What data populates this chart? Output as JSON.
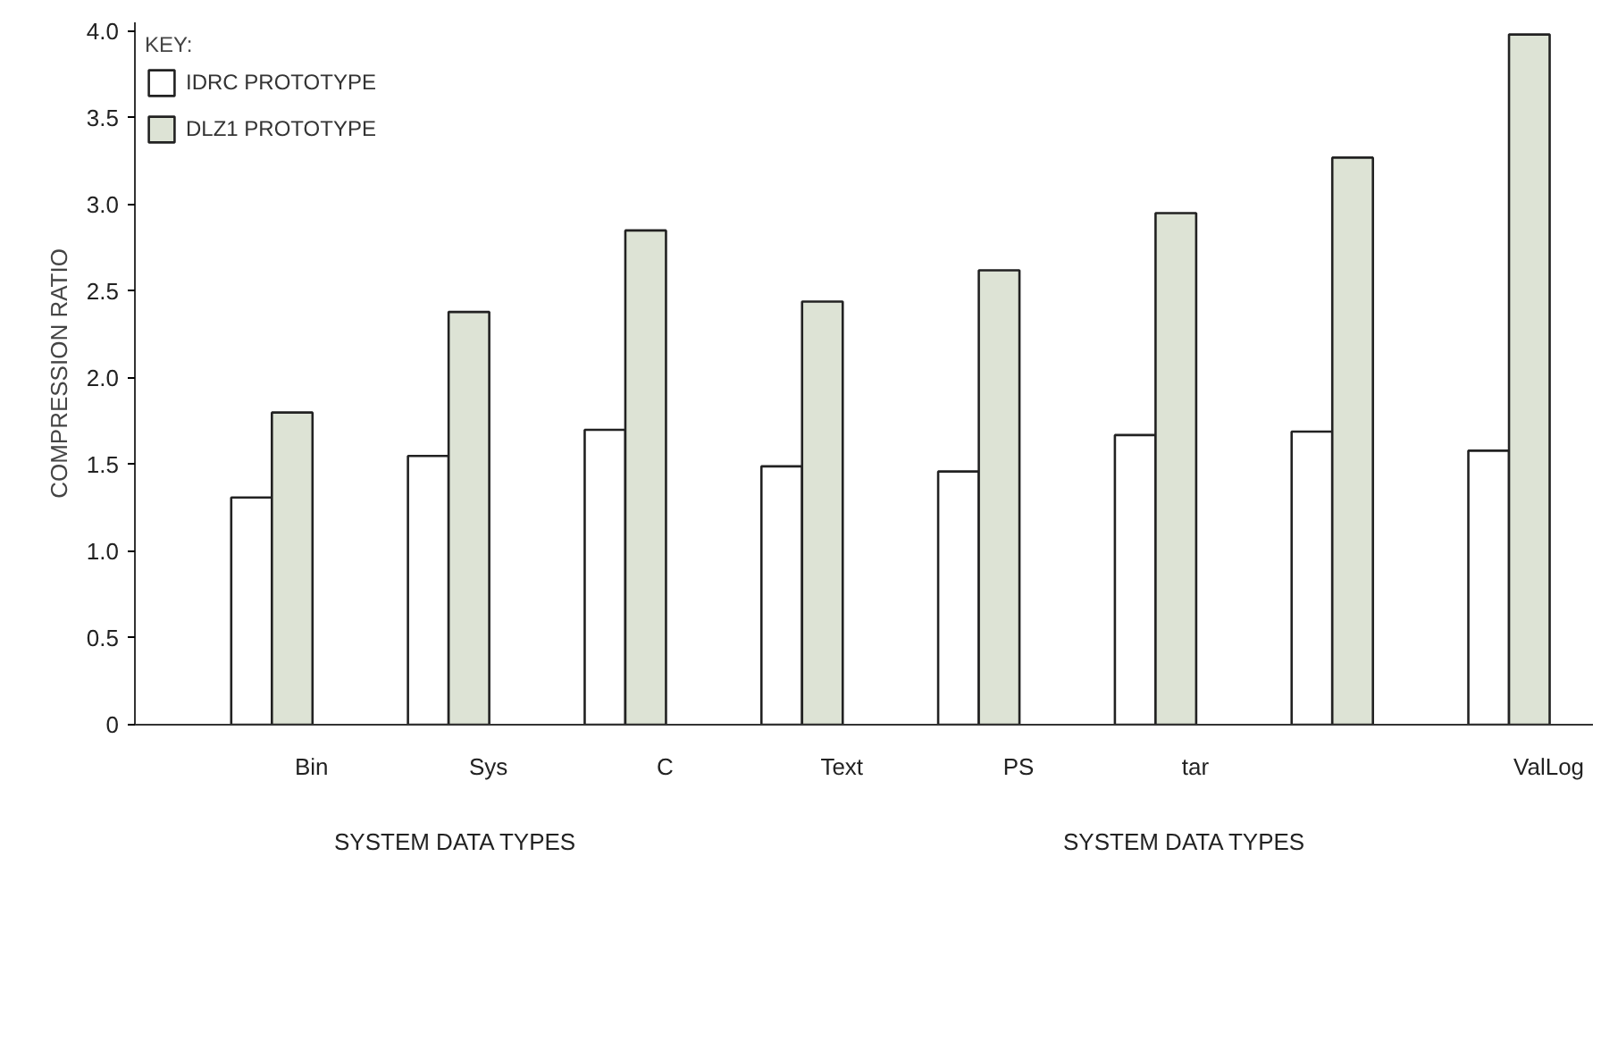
{
  "chart_data": {
    "type": "bar",
    "ylabel": "COMPRESSION RATIO",
    "legend_title": "KEY:",
    "categories": [
      "Bin",
      "Sys",
      "C",
      "Text",
      "PS",
      "tar",
      null,
      "ValLog"
    ],
    "series": [
      {
        "name": "IDRC PROTOTYPE",
        "color": "#ffffff",
        "values": [
          1.31,
          1.55,
          1.7,
          1.49,
          1.46,
          1.67,
          1.69,
          1.58
        ]
      },
      {
        "name": "DLZ1 PROTOTYPE",
        "color": "#dde3d5",
        "values": [
          1.8,
          2.38,
          2.85,
          2.44,
          2.62,
          2.95,
          3.27,
          3.98
        ]
      }
    ],
    "ylim": [
      0,
      4.05
    ],
    "yticks": [
      0,
      0.5,
      {
        "value": 1,
        "label": "1.0"
      },
      1.5,
      {
        "value": 2,
        "label": "2.0"
      },
      2.5,
      {
        "value": 3,
        "label": "3.0"
      },
      3.5,
      {
        "value": 4,
        "label": "4.0"
      }
    ],
    "annotations": [
      "SYSTEM DATA TYPES",
      "SYSTEM DATA TYPES"
    ],
    "grid": false,
    "legend": "top left"
  }
}
